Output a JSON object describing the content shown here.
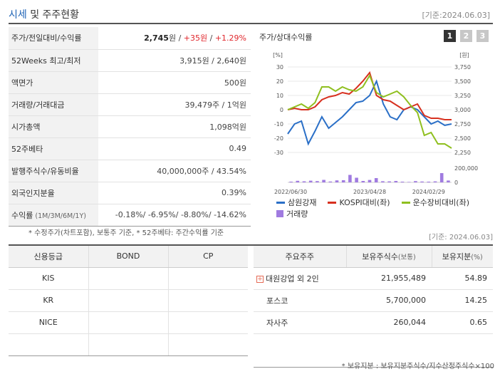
{
  "header": {
    "title_accent": "시세",
    "title_rest": " 및 주주현황",
    "date": "[기준:2024.06.03]"
  },
  "quote": {
    "rows": [
      {
        "label": "주가/전일대비/수익률",
        "price": "2,745",
        "price_unit": "원",
        "sep": " / ",
        "change": "+35원",
        "sep2": " / ",
        "rate": "+1.29%"
      },
      {
        "label": "52Weeks 최고/최저",
        "value": "3,915원 / 2,640원"
      },
      {
        "label": "액면가",
        "value": "500원"
      },
      {
        "label": "거래량/거래대금",
        "value": "39,479주 / 1억원"
      },
      {
        "label": "시가총액",
        "value": "1,098억원"
      },
      {
        "label": "52주베타",
        "value": "0.49"
      },
      {
        "label": "발행주식수/유동비율",
        "value": "40,000,000주 / 43.54%"
      },
      {
        "label": "외국인지분율",
        "value": "0.39%"
      },
      {
        "label": "수익률",
        "label_small": " (1M/3M/6M/1Y)",
        "value": "-0.18%/ -6.95%/ -8.80%/ -14.62%"
      }
    ],
    "footnote": "* 수정주가(차트포함), 보통주 기준, * 52주베타: 주간수익률 기준"
  },
  "chart_panel": {
    "title": "주가/상대수익률",
    "tabs": [
      "1",
      "2",
      "3"
    ]
  },
  "chart_data": {
    "type": "line",
    "x_ticks": [
      "2022/06/30",
      "2023/04/28",
      "2024/02/29"
    ],
    "left_axis": {
      "unit": "[%]",
      "ticks": [
        "30",
        "20",
        "10",
        "0",
        "-10",
        "-20",
        "-30"
      ],
      "range": [
        -30,
        30
      ]
    },
    "right_axis": {
      "unit": "[원]",
      "ticks": [
        "3,750",
        "3,500",
        "3,250",
        "3,000",
        "2,750",
        "2,500",
        "2,250"
      ],
      "range": [
        2250,
        3750
      ]
    },
    "volume_axis": {
      "ticks": [
        "200,000",
        "0"
      ],
      "range": [
        0,
        200000
      ]
    },
    "series": [
      {
        "name": "삼원강재",
        "axis": "left",
        "color": "#2a6fc7",
        "values": [
          -17,
          -10,
          -8,
          -24,
          -15,
          -5,
          -13,
          -9,
          -5,
          0,
          5,
          6,
          10,
          20,
          4,
          -5,
          -7,
          0,
          2,
          0,
          -5,
          -10,
          -8,
          -11,
          -10
        ]
      },
      {
        "name": "KOSPI대비(좌)",
        "axis": "left",
        "color": "#d7301f",
        "values": [
          0,
          1,
          0,
          0,
          2,
          7,
          9,
          10,
          12,
          11,
          15,
          20,
          26,
          10,
          7,
          6,
          3,
          0,
          2,
          4,
          -4,
          -6,
          -6,
          -7,
          -7
        ]
      },
      {
        "name": "운수장비대비(좌)",
        "axis": "left",
        "color": "#8fbf1f",
        "values": [
          0,
          2,
          4,
          1,
          5,
          16,
          16,
          13,
          16,
          14,
          13,
          16,
          24,
          12,
          9,
          11,
          13,
          9,
          3,
          -2,
          -18,
          -16,
          -24,
          -24,
          -27
        ]
      }
    ],
    "volume": {
      "name": "거래량",
      "color": "#a07be0",
      "values": [
        10000,
        22000,
        15000,
        24000,
        18000,
        35000,
        12000,
        28000,
        30000,
        105000,
        65000,
        20000,
        34000,
        60000,
        16000,
        14000,
        20000,
        10000,
        6000,
        18000,
        12000,
        10000,
        14000,
        130000,
        26000
      ]
    }
  },
  "legend": {
    "items": [
      {
        "label": "삼원강재",
        "color": "#2a6fc7"
      },
      {
        "label": "KOSPI대비(좌)",
        "color": "#d7301f"
      },
      {
        "label": "운수장비대비(좌)",
        "color": "#8fbf1f"
      }
    ],
    "volume_label": "거래량",
    "volume_color": "#a07be0"
  },
  "date_right": "[기준: 2024.06.03]",
  "credit": {
    "headers": [
      "신용등급",
      "BOND",
      "CP"
    ],
    "rows": [
      {
        "agency": "KIS",
        "bond": "",
        "cp": ""
      },
      {
        "agency": "KR",
        "bond": "",
        "cp": ""
      },
      {
        "agency": "NICE",
        "bond": "",
        "cp": ""
      },
      {
        "agency": "",
        "bond": "",
        "cp": ""
      }
    ]
  },
  "holders": {
    "headers": [
      "주요주주",
      "보유주식수",
      "(보통)",
      "보유지분",
      "(%)"
    ],
    "rows": [
      {
        "name": "대원강업 외 2인",
        "shares": "21,955,489",
        "pct": "54.89",
        "expandable": true
      },
      {
        "name": "포스코",
        "shares": "5,700,000",
        "pct": "14.25"
      },
      {
        "name": "자사주",
        "shares": "260,044",
        "pct": "0.65"
      },
      {
        "name": "",
        "shares": "",
        "pct": ""
      }
    ],
    "footnote": "* 보유지분 : 보유지분주식수/지수산정주식수×100"
  }
}
